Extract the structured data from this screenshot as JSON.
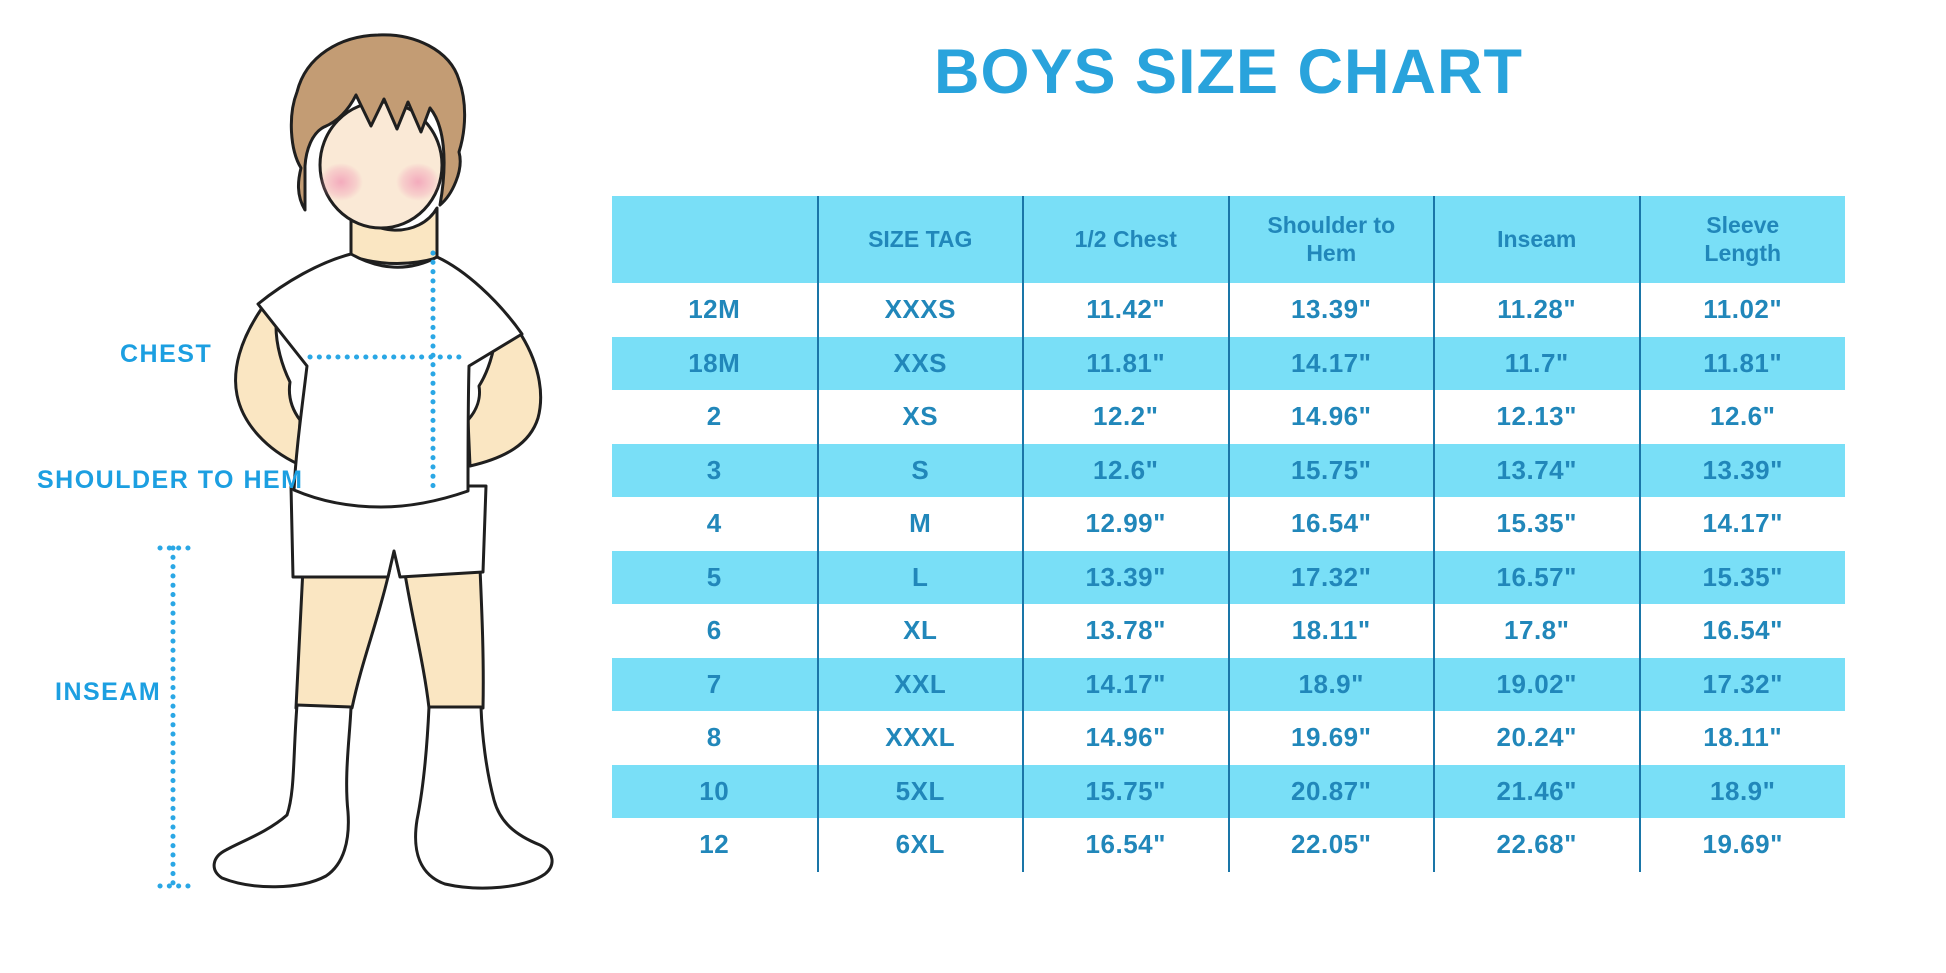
{
  "title": "BOYS SIZE CHART",
  "diagram": {
    "labels": {
      "chest": "CHEST",
      "shoulder_to_hem": "SHOULDER TO HEM",
      "inseam": "INSEAM"
    }
  },
  "chart_data": {
    "type": "table",
    "title": "BOYS SIZE CHART",
    "columns": [
      "",
      "SIZE TAG",
      "1/2 Chest",
      "Shoulder to Hem",
      "Inseam",
      "Sleeve Length"
    ],
    "rows": [
      [
        "12M",
        "XXXS",
        "11.42\"",
        "13.39\"",
        "11.28\"",
        "11.02\""
      ],
      [
        "18M",
        "XXS",
        "11.81\"",
        "14.17\"",
        "11.7\"",
        "11.81\""
      ],
      [
        "2",
        "XS",
        "12.2\"",
        "14.96\"",
        "12.13\"",
        "12.6\""
      ],
      [
        "3",
        "S",
        "12.6\"",
        "15.75\"",
        "13.74\"",
        "13.39\""
      ],
      [
        "4",
        "M",
        "12.99\"",
        "16.54\"",
        "15.35\"",
        "14.17\""
      ],
      [
        "5",
        "L",
        "13.39\"",
        "17.32\"",
        "16.57\"",
        "15.35\""
      ],
      [
        "6",
        "XL",
        "13.78\"",
        "18.11\"",
        "17.8\"",
        "16.54\""
      ],
      [
        "7",
        "XXL",
        "14.17\"",
        "18.9\"",
        "19.02\"",
        "17.32\""
      ],
      [
        "8",
        "XXXL",
        "14.96\"",
        "19.69\"",
        "20.24\"",
        "18.11\""
      ],
      [
        "10",
        "5XL",
        "15.75\"",
        "20.87\"",
        "21.46\"",
        "18.9\""
      ],
      [
        "12",
        "6XL",
        "16.54\"",
        "22.05\"",
        "22.68\"",
        "19.69\""
      ]
    ],
    "layout": {
      "striped_row_color": "#79dff7",
      "grid": "vertical-dividers-only"
    }
  },
  "colors": {
    "title_blue": "#29a3dc",
    "table_text_blue": "#2187ba",
    "stripe_cyan": "#79dff7",
    "divider_blue": "#1a76a8",
    "label_blue": "#1c9fe1",
    "dotted_line_blue": "#2aa7e5",
    "hair_brown": "#c39c74",
    "skin": "#fae6c2"
  }
}
